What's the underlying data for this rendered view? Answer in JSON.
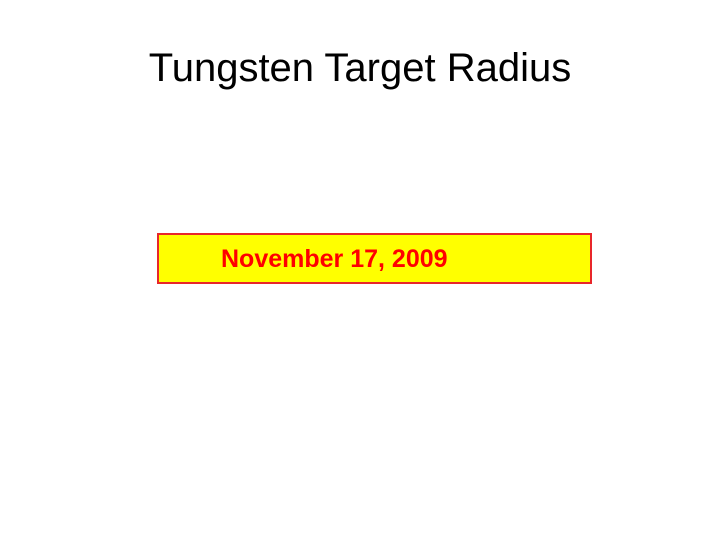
{
  "slide": {
    "title": "Tungsten Target Radius",
    "date_banner": {
      "text": "November 17, 2009",
      "background_color": "#ffff00",
      "border_color": "#e8262a",
      "text_color": "#ff0000"
    }
  }
}
